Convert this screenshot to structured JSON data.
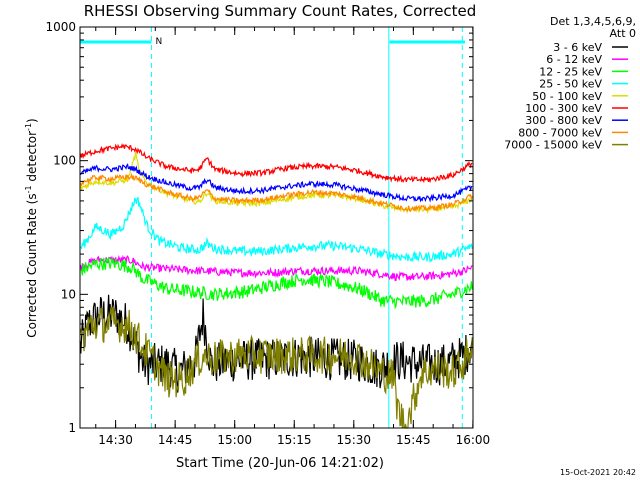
{
  "chart_data": {
    "type": "line",
    "title": "RHESSI Observing Summary Count Rates, Corrected",
    "xlabel": "Start Time (20-Jun-06 14:21:02)",
    "ylabel_main": "Corrected Count Rate (s",
    "ylabel_sup1": "-1",
    "ylabel_mid": " detector",
    "ylabel_sup2": "-1",
    "ylabel_end": ")",
    "y_scale": "log",
    "ylim": [
      1,
      1000
    ],
    "xlim_minutes": [
      0,
      99
    ],
    "x_ticks": [
      {
        "label": "14:30",
        "min": 8.97
      },
      {
        "label": "14:45",
        "min": 23.97
      },
      {
        "label": "15:00",
        "min": 38.97
      },
      {
        "label": "15:15",
        "min": 53.97
      },
      {
        "label": "15:30",
        "min": 68.97
      },
      {
        "label": "15:45",
        "min": 83.97
      },
      {
        "label": "16:00",
        "min": 98.97
      }
    ],
    "y_ticks": [
      {
        "label": "1",
        "value": 1
      },
      {
        "label": "10",
        "value": 10
      },
      {
        "label": "100",
        "value": 100
      },
      {
        "label": "1000",
        "value": 1000
      }
    ],
    "legend_header": [
      "Det 1,3,4,5,6,9,",
      "Att 0"
    ],
    "legend_position": "right",
    "series": [
      {
        "name": "3 - 6 keV",
        "color": "#000000",
        "points": [
          [
            0,
            4
          ],
          [
            2,
            6
          ],
          [
            5,
            7
          ],
          [
            9,
            7
          ],
          [
            12,
            6
          ],
          [
            16,
            3
          ],
          [
            22,
            3
          ],
          [
            25,
            2.6
          ],
          [
            29,
            3.2
          ],
          [
            31,
            7
          ],
          [
            33,
            3
          ],
          [
            40,
            3.2
          ],
          [
            50,
            3.3
          ],
          [
            55,
            3.4
          ],
          [
            62,
            3.3
          ],
          [
            70,
            3.2
          ],
          [
            75,
            2.8
          ],
          [
            80,
            3.2
          ],
          [
            86,
            3
          ],
          [
            92,
            3
          ],
          [
            97,
            3.5
          ],
          [
            99,
            4.5
          ]
        ]
      },
      {
        "name": "6 - 12 keV",
        "color": "#ff00ff",
        "points": [
          [
            0,
            16
          ],
          [
            4,
            18
          ],
          [
            9,
            18
          ],
          [
            13,
            18
          ],
          [
            16,
            16
          ],
          [
            22,
            15.5
          ],
          [
            30,
            15
          ],
          [
            40,
            14.5
          ],
          [
            48,
            14.5
          ],
          [
            55,
            15
          ],
          [
            62,
            15
          ],
          [
            70,
            15
          ],
          [
            76,
            14.2
          ],
          [
            80,
            13.5
          ],
          [
            86,
            13.5
          ],
          [
            92,
            14
          ],
          [
            97,
            15
          ],
          [
            99,
            16
          ]
        ]
      },
      {
        "name": "12 - 25 keV",
        "color": "#00ff00",
        "points": [
          [
            0,
            15
          ],
          [
            4,
            17
          ],
          [
            9,
            17
          ],
          [
            13,
            16
          ],
          [
            16,
            13
          ],
          [
            22,
            11
          ],
          [
            28,
            10.5
          ],
          [
            34,
            10
          ],
          [
            42,
            10.5
          ],
          [
            50,
            12
          ],
          [
            56,
            13
          ],
          [
            62,
            12.5
          ],
          [
            68,
            11.5
          ],
          [
            72,
            10.5
          ],
          [
            76,
            9
          ],
          [
            82,
            8.8
          ],
          [
            88,
            9
          ],
          [
            94,
            10
          ],
          [
            99,
            11.5
          ]
        ]
      },
      {
        "name": "25 - 50 keV",
        "color": "#00ffff",
        "points": [
          [
            0,
            22
          ],
          [
            2,
            26
          ],
          [
            4,
            32
          ],
          [
            6,
            30
          ],
          [
            8,
            28
          ],
          [
            11,
            33
          ],
          [
            14,
            52
          ],
          [
            15,
            48
          ],
          [
            17,
            32
          ],
          [
            20,
            25
          ],
          [
            26,
            22
          ],
          [
            30,
            21.5
          ],
          [
            32,
            24
          ],
          [
            34,
            22
          ],
          [
            40,
            21
          ],
          [
            46,
            21
          ],
          [
            52,
            22
          ],
          [
            58,
            23
          ],
          [
            64,
            23
          ],
          [
            70,
            22
          ],
          [
            76,
            20
          ],
          [
            82,
            19
          ],
          [
            88,
            19
          ],
          [
            94,
            20
          ],
          [
            99,
            23
          ]
        ]
      },
      {
        "name": "50 - 100 keV",
        "color": "#dddd00",
        "points": [
          [
            0,
            62
          ],
          [
            4,
            70
          ],
          [
            8,
            68
          ],
          [
            12,
            72
          ],
          [
            14,
            112
          ],
          [
            15,
            82
          ],
          [
            17,
            67
          ],
          [
            22,
            57
          ],
          [
            28,
            50
          ],
          [
            30,
            49
          ],
          [
            32,
            58
          ],
          [
            34,
            50
          ],
          [
            40,
            48
          ],
          [
            46,
            48
          ],
          [
            52,
            52
          ],
          [
            58,
            55
          ],
          [
            64,
            55
          ],
          [
            70,
            52
          ],
          [
            76,
            46
          ],
          [
            82,
            43
          ],
          [
            88,
            43
          ],
          [
            94,
            45
          ],
          [
            99,
            52
          ]
        ]
      },
      {
        "name": "100 - 300 keV",
        "color": "#ff0000",
        "points": [
          [
            0,
            108
          ],
          [
            4,
            118
          ],
          [
            8,
            124
          ],
          [
            11,
            128
          ],
          [
            14,
            122
          ],
          [
            17,
            105
          ],
          [
            22,
            90
          ],
          [
            28,
            84
          ],
          [
            30,
            86
          ],
          [
            32,
            104
          ],
          [
            34,
            86
          ],
          [
            40,
            80
          ],
          [
            46,
            81
          ],
          [
            52,
            88
          ],
          [
            58,
            91
          ],
          [
            64,
            90
          ],
          [
            70,
            84
          ],
          [
            76,
            76
          ],
          [
            82,
            72
          ],
          [
            88,
            72
          ],
          [
            94,
            78
          ],
          [
            99,
            97
          ]
        ]
      },
      {
        "name": "300 - 800 keV",
        "color": "#0000ff",
        "points": [
          [
            0,
            80
          ],
          [
            4,
            88
          ],
          [
            8,
            86
          ],
          [
            12,
            90
          ],
          [
            14,
            86
          ],
          [
            17,
            76
          ],
          [
            22,
            68
          ],
          [
            28,
            62
          ],
          [
            30,
            63
          ],
          [
            32,
            72
          ],
          [
            34,
            63
          ],
          [
            40,
            59
          ],
          [
            46,
            60
          ],
          [
            52,
            64
          ],
          [
            58,
            67
          ],
          [
            64,
            66
          ],
          [
            70,
            61
          ],
          [
            76,
            56
          ],
          [
            82,
            52
          ],
          [
            88,
            52
          ],
          [
            94,
            55
          ],
          [
            99,
            64
          ]
        ]
      },
      {
        "name": "800 - 7000 keV",
        "color": "#ff8800",
        "points": [
          [
            0,
            68
          ],
          [
            4,
            75
          ],
          [
            8,
            73
          ],
          [
            12,
            76
          ],
          [
            14,
            74
          ],
          [
            17,
            66
          ],
          [
            22,
            58
          ],
          [
            28,
            52
          ],
          [
            30,
            53
          ],
          [
            32,
            60
          ],
          [
            34,
            52
          ],
          [
            40,
            50
          ],
          [
            46,
            51
          ],
          [
            52,
            55
          ],
          [
            58,
            58
          ],
          [
            64,
            57
          ],
          [
            70,
            53
          ],
          [
            76,
            48
          ],
          [
            82,
            44
          ],
          [
            88,
            44
          ],
          [
            94,
            47
          ],
          [
            99,
            55
          ]
        ]
      },
      {
        "name": "7000 - 15000 keV",
        "color": "#808000",
        "points": [
          [
            0,
            4.5
          ],
          [
            3,
            6
          ],
          [
            7,
            6
          ],
          [
            11,
            6
          ],
          [
            13,
            5.5
          ],
          [
            16,
            4
          ],
          [
            22,
            2.3
          ],
          [
            26,
            2.3
          ],
          [
            28,
            2.8
          ],
          [
            31,
            3.5
          ],
          [
            34,
            3.3
          ],
          [
            40,
            3.5
          ],
          [
            50,
            3.5
          ],
          [
            60,
            3.5
          ],
          [
            66,
            3.5
          ],
          [
            70,
            3.4
          ],
          [
            76,
            2.6
          ],
          [
            79,
            2.4
          ],
          [
            80,
            1.4
          ],
          [
            82,
            1.0
          ],
          [
            84,
            1.6
          ],
          [
            86,
            2.6
          ],
          [
            90,
            2.8
          ],
          [
            94,
            2.6
          ],
          [
            97,
            3.2
          ],
          [
            99,
            4.5
          ]
        ]
      }
    ],
    "annotations": {
      "attenuator_segments": [
        [
          0,
          18
        ],
        [
          78,
          97
        ]
      ],
      "attenuator_label": "N",
      "solid_vlines_min": [
        0,
        77.8
      ],
      "dashed_vlines_min": [
        18,
        96.3
      ]
    },
    "timestamp": "15-Oct-2021 20:42"
  }
}
